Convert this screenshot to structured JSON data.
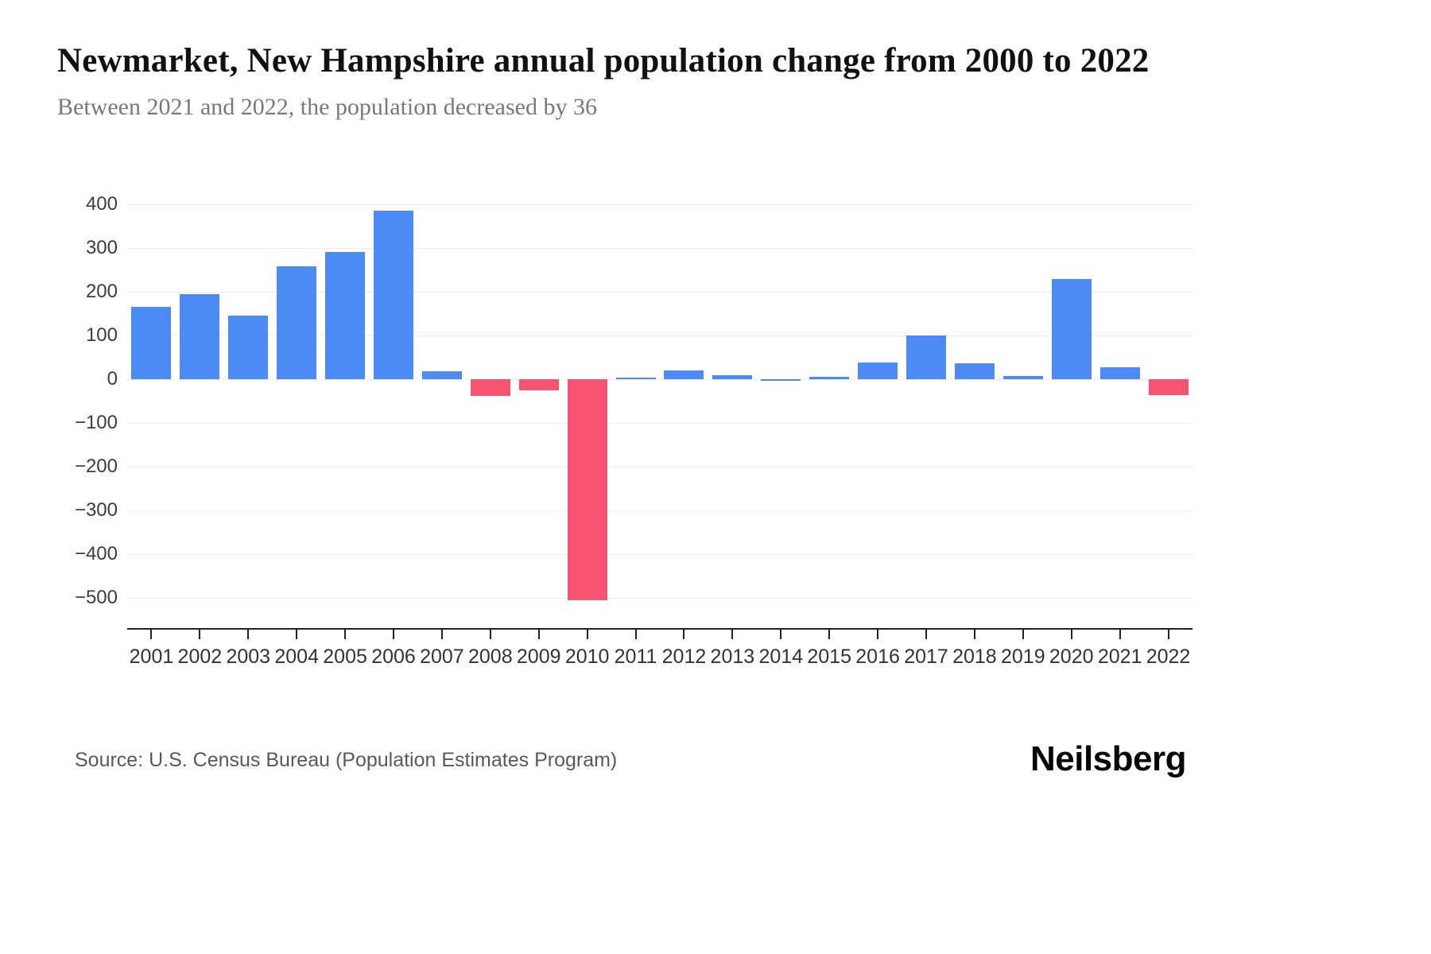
{
  "header": {
    "title": "Newmarket, New Hampshire annual population change from 2000 to 2022",
    "subtitle": "Between 2021 and 2022, the population decreased by 36"
  },
  "chart_data": {
    "type": "bar",
    "title": "Newmarket, New Hampshire annual population change from 2000 to 2022",
    "xlabel": "",
    "ylabel": "",
    "categories": [
      "2001",
      "2002",
      "2003",
      "2004",
      "2005",
      "2006",
      "2007",
      "2008",
      "2009",
      "2010",
      "2011",
      "2012",
      "2013",
      "2014",
      "2015",
      "2016",
      "2017",
      "2018",
      "2019",
      "2020",
      "2021",
      "2022"
    ],
    "values": [
      165,
      195,
      145,
      258,
      291,
      386,
      18,
      -38,
      -26,
      -506,
      4,
      20,
      9,
      1,
      6,
      38,
      100,
      36,
      7,
      230,
      28,
      -36
    ],
    "ylim": [
      -570,
      450
    ],
    "yticks": [
      400,
      300,
      200,
      100,
      0,
      -100,
      -200,
      -300,
      -400,
      -500
    ],
    "grid": "horizontal",
    "legend_position": "none",
    "positive_color": "#4C8BF5",
    "negative_color": "#F5536F"
  },
  "footer": {
    "source": "Source: U.S. Census Bureau (Population Estimates Program)",
    "logo": "Neilsberg"
  }
}
